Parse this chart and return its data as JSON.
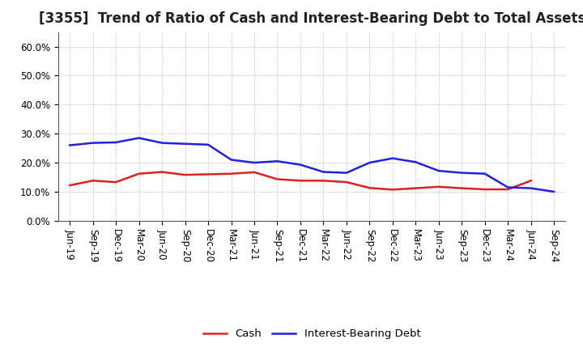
{
  "title": "[3355]  Trend of Ratio of Cash and Interest-Bearing Debt to Total Assets",
  "x_labels": [
    "Jun-19",
    "Sep-19",
    "Dec-19",
    "Mar-20",
    "Jun-20",
    "Sep-20",
    "Dec-20",
    "Mar-21",
    "Jun-21",
    "Sep-21",
    "Dec-21",
    "Mar-22",
    "Jun-22",
    "Sep-22",
    "Dec-22",
    "Mar-23",
    "Jun-23",
    "Sep-23",
    "Dec-23",
    "Mar-24",
    "Jun-24",
    "Sep-24"
  ],
  "cash": [
    0.122,
    0.138,
    0.133,
    0.162,
    0.168,
    0.158,
    0.16,
    0.162,
    0.167,
    0.143,
    0.138,
    0.138,
    0.133,
    0.113,
    0.107,
    0.112,
    0.117,
    0.112,
    0.108,
    0.108,
    0.138,
    null
  ],
  "interest_bearing_debt": [
    0.26,
    0.268,
    0.27,
    0.285,
    0.268,
    0.265,
    0.262,
    0.21,
    0.2,
    0.205,
    0.193,
    0.168,
    0.165,
    0.2,
    0.215,
    0.202,
    0.172,
    0.165,
    0.162,
    0.115,
    0.112,
    0.1
  ],
  "cash_color": "#e02020",
  "ibd_color": "#2020e0",
  "ylim": [
    0.0,
    0.65
  ],
  "yticks": [
    0.0,
    0.1,
    0.2,
    0.3,
    0.4,
    0.5,
    0.6
  ],
  "ytick_labels": [
    "0.0%",
    "10.0%",
    "20.0%",
    "30.0%",
    "40.0%",
    "50.0%",
    "60.0%"
  ],
  "background_color": "#ffffff",
  "grid_color": "#b0b0b0",
  "legend_cash": "Cash",
  "legend_ibd": "Interest-Bearing Debt",
  "title_fontsize": 12,
  "tick_fontsize": 8.5,
  "legend_fontsize": 9.5,
  "line_width": 1.8
}
